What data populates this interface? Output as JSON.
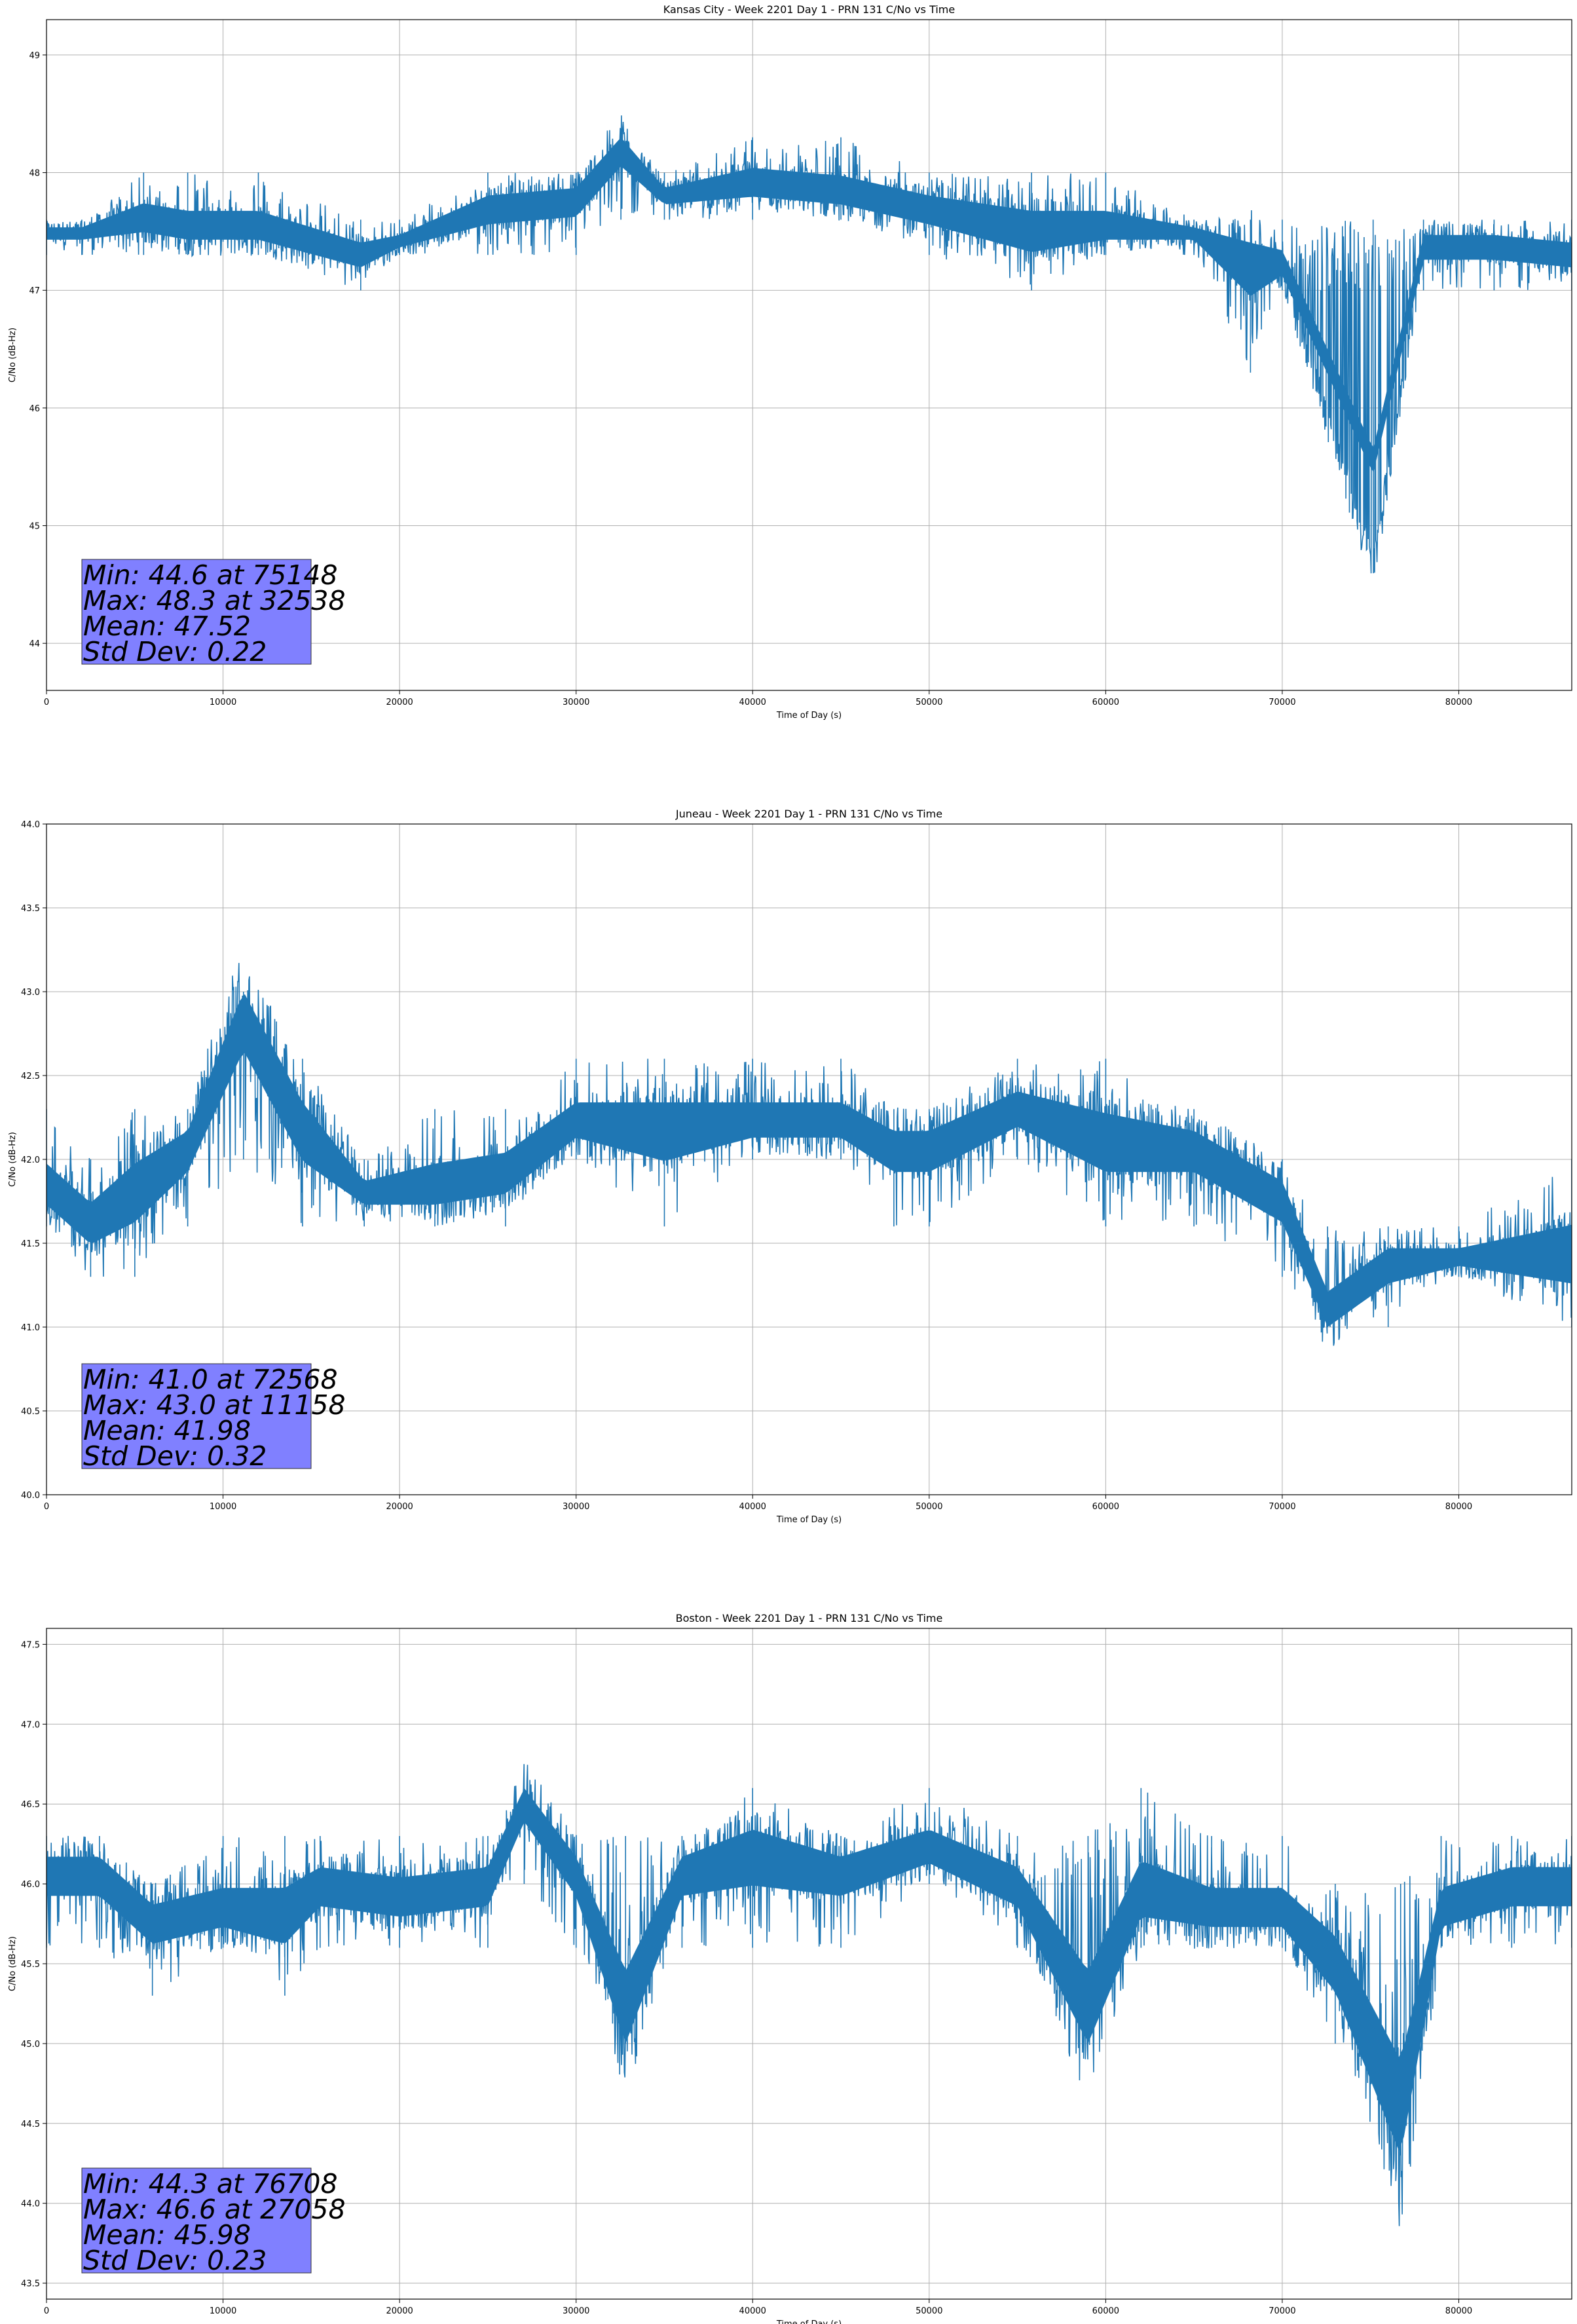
{
  "chart_data": [
    {
      "type": "line",
      "title": "Kansas City - Week 2201 Day 1 - PRN 131 C/No vs Time",
      "xlabel": "Time of Day (s)",
      "ylabel": "C/No (dB-Hz)",
      "xlim": [
        0,
        86400
      ],
      "ylim": [
        43.6,
        49.3
      ],
      "xticks": [
        0,
        10000,
        20000,
        30000,
        40000,
        50000,
        60000,
        70000,
        80000
      ],
      "yticks": [
        44,
        45,
        46,
        47,
        48,
        49
      ],
      "ytick_decimals": 0,
      "grid": true,
      "color": "#1f77b4",
      "series": [
        {
          "values_description": "C/No samples",
          "x": [
            0,
            2000,
            5500,
            8000,
            12000,
            17800,
            20000,
            25000,
            30000,
            32538,
            35000,
            40000,
            45000,
            50000,
            55800,
            60000,
            65000,
            68200,
            70000,
            75148,
            78000,
            82000,
            86400
          ],
          "y": [
            47.5,
            47.5,
            47.6,
            47.5,
            47.5,
            47.3,
            47.4,
            47.7,
            47.8,
            48.3,
            47.8,
            47.9,
            47.8,
            47.7,
            47.5,
            47.5,
            47.5,
            47.3,
            47.2,
            44.6,
            47.4,
            47.4,
            47.3
          ],
          "band_low": [
            47.3,
            47.3,
            47.3,
            47.3,
            47.3,
            47.0,
            47.3,
            47.3,
            47.3,
            47.6,
            47.6,
            47.6,
            47.6,
            47.3,
            47.0,
            47.3,
            47.3,
            46.3,
            47.0,
            47.0,
            47.0,
            47.0,
            47.0
          ],
          "band_high": [
            47.6,
            47.6,
            48.0,
            48.0,
            48.0,
            47.6,
            47.6,
            48.0,
            48.0,
            48.3,
            48.0,
            48.3,
            48.3,
            48.0,
            48.0,
            48.0,
            47.6,
            47.6,
            47.6,
            47.6,
            47.6,
            47.6,
            47.6
          ]
        }
      ],
      "stats": [
        "Min: 44.6 at 75148",
        "Max: 48.3 at 32538",
        "Mean: 47.52",
        "Std Dev: 0.22"
      ]
    },
    {
      "type": "line",
      "title": "Juneau - Week 2201 Day 1 - PRN 131 C/No vs Time",
      "xlabel": "Time of Day (s)",
      "ylabel": "C/No (dB-Hz)",
      "xlim": [
        0,
        86400
      ],
      "ylim": [
        40.0,
        44.0
      ],
      "xticks": [
        0,
        10000,
        20000,
        30000,
        40000,
        50000,
        60000,
        70000,
        80000
      ],
      "yticks": [
        40.0,
        40.5,
        41.0,
        41.5,
        42.0,
        42.5,
        43.0,
        43.5,
        44.0
      ],
      "ytick_decimals": 1,
      "grid": true,
      "color": "#1f77b4",
      "series": [
        {
          "values_description": "C/No samples",
          "x": [
            0,
            2500,
            5000,
            8000,
            11158,
            14500,
            18000,
            22000,
            26000,
            30000,
            35000,
            40000,
            45000,
            48000,
            50000,
            55000,
            60000,
            65000,
            70000,
            72568,
            76000,
            80000,
            86400
          ],
          "y": [
            41.8,
            41.6,
            41.8,
            42.1,
            43.0,
            42.2,
            41.8,
            41.8,
            41.9,
            42.2,
            42.2,
            42.2,
            42.2,
            42.1,
            42.1,
            42.3,
            42.1,
            42.1,
            41.8,
            41.0,
            41.4,
            41.4,
            41.4
          ],
          "band_low": [
            41.6,
            41.3,
            41.3,
            41.6,
            42.0,
            41.6,
            41.6,
            41.6,
            41.6,
            42.0,
            41.6,
            42.0,
            42.0,
            41.6,
            41.6,
            42.0,
            41.6,
            41.6,
            41.3,
            41.0,
            41.0,
            41.3,
            41.0
          ],
          "band_high": [
            42.3,
            42.0,
            42.3,
            42.3,
            43.0,
            42.6,
            42.0,
            42.3,
            42.3,
            42.6,
            42.6,
            42.6,
            42.6,
            42.3,
            42.3,
            42.6,
            42.6,
            42.3,
            42.0,
            41.6,
            41.6,
            41.6,
            42.0
          ]
        }
      ],
      "stats": [
        "Min: 41.0 at 72568",
        "Max: 43.0 at 11158",
        "Mean: 41.98",
        "Std Dev: 0.32"
      ]
    },
    {
      "type": "line",
      "title": "Boston - Week 2201 Day 1 - PRN 131 C/No vs Time",
      "xlabel": "Time of Day (s)",
      "ylabel": "C/No (dB-Hz)",
      "xlim": [
        0,
        86400
      ],
      "ylim": [
        43.4,
        47.6
      ],
      "xticks": [
        0,
        10000,
        20000,
        30000,
        40000,
        50000,
        60000,
        70000,
        80000
      ],
      "yticks": [
        43.5,
        44.0,
        44.5,
        45.0,
        45.5,
        46.0,
        46.5,
        47.0,
        47.5
      ],
      "ytick_decimals": 1,
      "grid": true,
      "color": "#1f77b4",
      "series": [
        {
          "values_description": "C/No samples",
          "x": [
            0,
            3000,
            6000,
            10000,
            13500,
            15500,
            20000,
            25000,
            27058,
            30000,
            32800,
            36000,
            40000,
            45000,
            50000,
            55000,
            59000,
            62000,
            66000,
            70000,
            73000,
            76708,
            79000,
            83000,
            86400
          ],
          "y": [
            46.1,
            46.1,
            45.8,
            45.8,
            45.8,
            46.0,
            45.9,
            46.0,
            46.6,
            46.1,
            45.0,
            46.1,
            46.2,
            46.1,
            46.2,
            46.0,
            45.0,
            45.9,
            45.8,
            45.8,
            45.5,
            44.3,
            45.8,
            46.0,
            46.0
          ],
          "band_low": [
            45.6,
            45.6,
            45.3,
            45.6,
            45.3,
            45.6,
            45.6,
            45.6,
            46.0,
            45.6,
            45.0,
            45.6,
            45.6,
            45.6,
            46.0,
            45.6,
            45.0,
            45.6,
            45.6,
            45.6,
            45.0,
            44.3,
            45.6,
            45.6,
            45.6
          ],
          "band_high": [
            46.3,
            46.3,
            46.0,
            46.3,
            46.3,
            46.3,
            46.3,
            46.3,
            46.6,
            46.3,
            46.3,
            46.3,
            46.6,
            46.3,
            46.6,
            46.3,
            46.3,
            46.6,
            46.3,
            46.3,
            46.0,
            46.0,
            46.3,
            46.3,
            46.3
          ]
        }
      ],
      "stats": [
        "Min: 44.3 at 76708",
        "Max: 46.6 at 27058",
        "Mean: 45.98",
        "Std Dev: 0.23"
      ]
    }
  ],
  "colors": {
    "line": "#1f77b4",
    "stats_box_fill": "#8080ff",
    "grid": "#b0b0b0"
  }
}
